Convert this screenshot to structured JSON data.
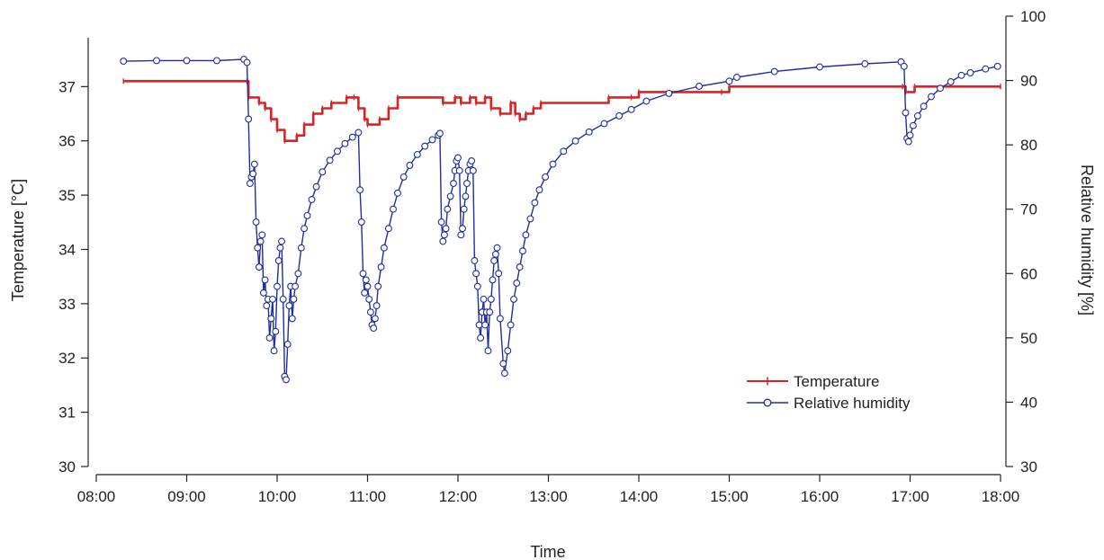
{
  "chart_data": {
    "type": "line",
    "xlabel": "Time",
    "ylabel_left": "Temperature [°C]",
    "ylabel_right": "Relative humidity [%]",
    "x_unit": "time of day (HH:MM)",
    "xlim": [
      "08:00",
      "18:00"
    ],
    "x_ticks": [
      "08:00",
      "09:00",
      "10:00",
      "11:00",
      "12:00",
      "13:00",
      "14:00",
      "15:00",
      "16:00",
      "17:00",
      "18:00"
    ],
    "ylim_left": [
      30,
      37.9
    ],
    "ylim_right": [
      30,
      100
    ],
    "y_ticks_left": [
      30,
      31,
      32,
      33,
      34,
      35,
      36,
      37
    ],
    "y_ticks_right": [
      30,
      40,
      50,
      60,
      70,
      80,
      90,
      100
    ],
    "legend_position": "lower-right",
    "grid": false,
    "series": [
      {
        "name": "Temperature",
        "axis": "left",
        "color": "#e02020",
        "marker": "plus",
        "step": true,
        "points": [
          [
            "08:18",
            37.1
          ],
          [
            "09:40",
            37.1
          ],
          [
            "09:41",
            36.8
          ],
          [
            "09:48",
            36.7
          ],
          [
            "09:52",
            36.6
          ],
          [
            "09:56",
            36.4
          ],
          [
            "10:00",
            36.2
          ],
          [
            "10:05",
            36.0
          ],
          [
            "10:13",
            36.1
          ],
          [
            "10:18",
            36.3
          ],
          [
            "10:24",
            36.5
          ],
          [
            "10:30",
            36.6
          ],
          [
            "10:36",
            36.7
          ],
          [
            "10:46",
            36.8
          ],
          [
            "10:51",
            36.8
          ],
          [
            "10:54",
            36.6
          ],
          [
            "10:58",
            36.4
          ],
          [
            "11:00",
            36.3
          ],
          [
            "11:08",
            36.4
          ],
          [
            "11:14",
            36.6
          ],
          [
            "11:20",
            36.8
          ],
          [
            "11:50",
            36.7
          ],
          [
            "11:58",
            36.8
          ],
          [
            "12:02",
            36.7
          ],
          [
            "12:08",
            36.8
          ],
          [
            "12:12",
            36.7
          ],
          [
            "12:18",
            36.8
          ],
          [
            "12:22",
            36.6
          ],
          [
            "12:28",
            36.5
          ],
          [
            "12:35",
            36.7
          ],
          [
            "12:38",
            36.5
          ],
          [
            "12:41",
            36.4
          ],
          [
            "12:45",
            36.5
          ],
          [
            "12:50",
            36.6
          ],
          [
            "12:55",
            36.7
          ],
          [
            "13:40",
            36.8
          ],
          [
            "13:55",
            36.8
          ],
          [
            "14:00",
            36.9
          ],
          [
            "14:55",
            36.9
          ],
          [
            "15:00",
            37.0
          ],
          [
            "16:55",
            37.0
          ],
          [
            "16:57",
            36.9
          ],
          [
            "17:03",
            37.0
          ],
          [
            "18:00",
            37.0
          ]
        ]
      },
      {
        "name": "Relative humidity",
        "axis": "right",
        "color": "#1f2ea0",
        "marker": "open-circle",
        "step": false,
        "points": [
          [
            "08:18",
            93.0
          ],
          [
            "08:40",
            93.1
          ],
          [
            "09:00",
            93.1
          ],
          [
            "09:20",
            93.1
          ],
          [
            "09:38",
            93.3
          ],
          [
            "09:40",
            92.8
          ],
          [
            "09:41",
            84.0
          ],
          [
            "09:42",
            74.0
          ],
          [
            "09:43",
            75.0
          ],
          [
            "09:44",
            75.5
          ],
          [
            "09:45",
            77.0
          ],
          [
            "09:46",
            68.0
          ],
          [
            "09:47",
            64.0
          ],
          [
            "09:48",
            61.0
          ],
          [
            "09:49",
            65.0
          ],
          [
            "09:50",
            66.0
          ],
          [
            "09:51",
            57.0
          ],
          [
            "09:52",
            59.0
          ],
          [
            "09:53",
            55.0
          ],
          [
            "09:54",
            56.0
          ],
          [
            "09:55",
            50.0
          ],
          [
            "09:56",
            53.0
          ],
          [
            "09:57",
            56.0
          ],
          [
            "09:58",
            48.0
          ],
          [
            "09:59",
            51.0
          ],
          [
            "10:00",
            58.0
          ],
          [
            "10:01",
            62.0
          ],
          [
            "10:02",
            64.0
          ],
          [
            "10:03",
            65.0
          ],
          [
            "10:04",
            56.0
          ],
          [
            "10:05",
            44.0
          ],
          [
            "10:06",
            43.5
          ],
          [
            "10:07",
            49.0
          ],
          [
            "10:08",
            55.0
          ],
          [
            "10:09",
            58.0
          ],
          [
            "10:10",
            53.0
          ],
          [
            "10:11",
            56.0
          ],
          [
            "10:12",
            58.0
          ],
          [
            "10:14",
            60.0
          ],
          [
            "10:16",
            64.0
          ],
          [
            "10:18",
            67.0
          ],
          [
            "10:20",
            69.0
          ],
          [
            "10:23",
            71.5
          ],
          [
            "10:26",
            73.5
          ],
          [
            "10:30",
            75.8
          ],
          [
            "10:35",
            77.6
          ],
          [
            "10:40",
            79.0
          ],
          [
            "10:45",
            80.2
          ],
          [
            "10:50",
            81.2
          ],
          [
            "10:54",
            81.9
          ],
          [
            "10:55",
            73.0
          ],
          [
            "10:56",
            68.0
          ],
          [
            "10:57",
            60.0
          ],
          [
            "10:58",
            57.0
          ],
          [
            "10:59",
            59.0
          ],
          [
            "11:00",
            58.0
          ],
          [
            "11:01",
            56.0
          ],
          [
            "11:02",
            54.0
          ],
          [
            "11:03",
            52.0
          ],
          [
            "11:04",
            51.5
          ],
          [
            "11:05",
            53.0
          ],
          [
            "11:06",
            55.0
          ],
          [
            "11:07",
            58.0
          ],
          [
            "11:09",
            61.0
          ],
          [
            "11:11",
            64.0
          ],
          [
            "11:14",
            67.0
          ],
          [
            "11:17",
            70.0
          ],
          [
            "11:20",
            72.5
          ],
          [
            "11:24",
            75.0
          ],
          [
            "11:28",
            76.8
          ],
          [
            "11:33",
            78.5
          ],
          [
            "11:38",
            79.8
          ],
          [
            "11:43",
            80.8
          ],
          [
            "11:47",
            81.5
          ],
          [
            "11:48",
            81.8
          ],
          [
            "11:49",
            68.0
          ],
          [
            "11:50",
            65.0
          ],
          [
            "11:51",
            66.0
          ],
          [
            "11:52",
            67.0
          ],
          [
            "11:53",
            70.0
          ],
          [
            "11:55",
            72.0
          ],
          [
            "11:57",
            74.0
          ],
          [
            "11:58",
            76.0
          ],
          [
            "11:59",
            77.5
          ],
          [
            "12:00",
            78.0
          ],
          [
            "12:01",
            76.0
          ],
          [
            "12:02",
            66.0
          ],
          [
            "12:03",
            67.0
          ],
          [
            "12:04",
            70.0
          ],
          [
            "12:05",
            72.0
          ],
          [
            "12:06",
            74.0
          ],
          [
            "12:07",
            76.0
          ],
          [
            "12:08",
            77.0
          ],
          [
            "12:09",
            77.5
          ],
          [
            "12:10",
            76.0
          ],
          [
            "12:11",
            62.0
          ],
          [
            "12:12",
            60.0
          ],
          [
            "12:13",
            58.0
          ],
          [
            "12:14",
            52.0
          ],
          [
            "12:15",
            50.0
          ],
          [
            "12:16",
            54.0
          ],
          [
            "12:17",
            56.0
          ],
          [
            "12:18",
            52.0
          ],
          [
            "12:19",
            54.0
          ],
          [
            "12:20",
            48.0
          ],
          [
            "12:21",
            54.0
          ],
          [
            "12:22",
            56.0
          ],
          [
            "12:23",
            59.0
          ],
          [
            "12:24",
            62.0
          ],
          [
            "12:25",
            63.0
          ],
          [
            "12:26",
            64.0
          ],
          [
            "12:27",
            60.0
          ],
          [
            "12:28",
            53.0
          ],
          [
            "12:30",
            46.0
          ],
          [
            "12:31",
            44.5
          ],
          [
            "12:33",
            48.0
          ],
          [
            "12:35",
            52.0
          ],
          [
            "12:37",
            56.0
          ],
          [
            "12:39",
            58.5
          ],
          [
            "12:41",
            61.0
          ],
          [
            "12:43",
            63.5
          ],
          [
            "12:45",
            66.0
          ],
          [
            "12:48",
            68.5
          ],
          [
            "12:51",
            71.0
          ],
          [
            "12:54",
            73.0
          ],
          [
            "12:58",
            75.0
          ],
          [
            "13:03",
            77.0
          ],
          [
            "13:10",
            79.0
          ],
          [
            "13:18",
            80.6
          ],
          [
            "13:27",
            82.0
          ],
          [
            "13:37",
            83.3
          ],
          [
            "13:47",
            84.5
          ],
          [
            "13:55",
            85.5
          ],
          [
            "14:05",
            86.8
          ],
          [
            "14:20",
            88.0
          ],
          [
            "14:40",
            89.1
          ],
          [
            "15:00",
            89.9
          ],
          [
            "15:05",
            90.5
          ],
          [
            "15:30",
            91.4
          ],
          [
            "16:00",
            92.1
          ],
          [
            "16:30",
            92.6
          ],
          [
            "16:54",
            92.9
          ],
          [
            "16:56",
            92.2
          ],
          [
            "16:57",
            85.0
          ],
          [
            "16:58",
            81.0
          ],
          [
            "16:59",
            80.5
          ],
          [
            "17:00",
            81.5
          ],
          [
            "17:02",
            83.0
          ],
          [
            "17:05",
            84.5
          ],
          [
            "17:09",
            86.0
          ],
          [
            "17:14",
            87.5
          ],
          [
            "17:20",
            88.8
          ],
          [
            "17:27",
            89.8
          ],
          [
            "17:34",
            90.8
          ],
          [
            "17:40",
            91.2
          ],
          [
            "17:50",
            91.8
          ],
          [
            "17:58",
            92.2
          ]
        ]
      }
    ]
  }
}
